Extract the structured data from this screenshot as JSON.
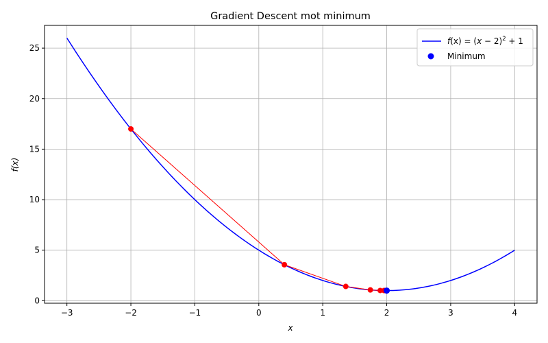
{
  "chart_data": {
    "type": "line",
    "title": "Gradient Descent mot minimum",
    "xlabel": "x",
    "ylabel": "f(x)",
    "xlim": [
      -3.35,
      4.35
    ],
    "ylim": [
      -0.25,
      27.25
    ],
    "xticks": [
      -3,
      -2,
      -1,
      0,
      1,
      2,
      3,
      4
    ],
    "xtick_labels": [
      "−3",
      "−2",
      "−1",
      "0",
      "1",
      "2",
      "3",
      "4"
    ],
    "yticks": [
      0,
      5,
      10,
      15,
      20,
      25
    ],
    "ytick_labels": [
      "0",
      "5",
      "10",
      "15",
      "20",
      "25"
    ],
    "grid": true,
    "legend_position": "top-right",
    "function": {
      "name": "f(x) = (x − 2)² + 1",
      "name_parts": {
        "f": "f",
        "lhs": "(x) = (",
        "x": "x",
        "mid": " − 2)",
        "exp": "2",
        "tail": " + 1"
      },
      "x_range": [
        -3,
        4
      ],
      "color": "#0000ff"
    },
    "steps": {
      "color": "#ff0000",
      "x": [
        -2,
        0.4,
        1.36,
        1.744,
        1.898,
        1.959,
        1.984,
        1.993,
        1.997,
        1.999
      ],
      "y": [
        17,
        3.56,
        1.41,
        1.066,
        1.01,
        1.002,
        1.0,
        1.0,
        1.0,
        1.0
      ]
    },
    "minimum": {
      "name": "Minimum",
      "x": 2,
      "y": 1,
      "color": "#0000ff"
    }
  }
}
